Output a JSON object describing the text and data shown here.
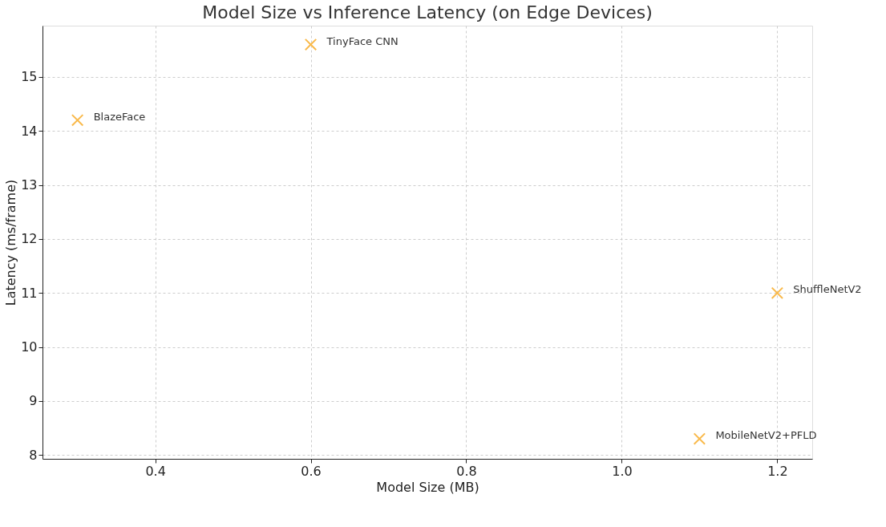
{
  "chart_data": {
    "type": "scatter",
    "title": "Model Size vs Inference Latency (on Edge Devices)",
    "xlabel": "Model Size (MB)",
    "ylabel": "Latency (ms/frame)",
    "x": [
      0.3,
      0.6,
      1.2,
      1.1
    ],
    "series": [
      {
        "color": "#f9b94a",
        "values": [
          14.2,
          15.6,
          11.0,
          8.3
        ]
      }
    ],
    "annotations": [
      {
        "text": "BlazeFace",
        "x": 0.3,
        "y": 14.2
      },
      {
        "text": "TinyFace CNN",
        "x": 0.6,
        "y": 15.6
      },
      {
        "text": "ShuffleNetV2",
        "x": 1.2,
        "y": 11.0
      },
      {
        "text": "MobileNetV2+PFLD",
        "x": 1.1,
        "y": 8.3
      }
    ],
    "xlim": [
      0.255,
      1.245
    ],
    "ylim": [
      7.93,
      15.95
    ],
    "xticks": [
      {
        "value": 0.4,
        "label": "0.4"
      },
      {
        "value": 0.6,
        "label": "0.6"
      },
      {
        "value": 0.8,
        "label": "0.8"
      },
      {
        "value": 1.0,
        "label": "1.0"
      },
      {
        "value": 1.2,
        "label": "1.2"
      }
    ],
    "yticks": [
      8,
      9,
      10,
      11,
      12,
      13,
      14,
      15
    ],
    "grid": true,
    "marker": "cross"
  }
}
